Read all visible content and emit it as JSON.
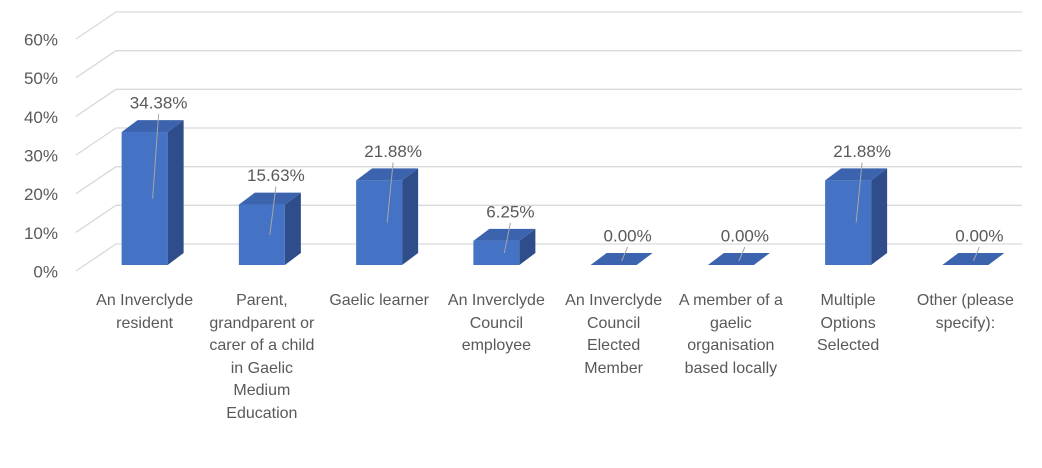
{
  "chart_data": {
    "type": "bar3d",
    "categories": [
      "An Inverclyde resident",
      "Parent, grandparent or carer of a child in Gaelic Medium Education",
      "Gaelic learner",
      "An Inverclyde Council employee",
      "An Inverclyde Council Elected Member",
      "A member of a gaelic organisation based locally",
      "Multiple Options Selected",
      "Other (please specify):"
    ],
    "values": [
      34.38,
      15.63,
      21.88,
      6.25,
      0,
      0,
      21.88,
      0
    ],
    "value_labels": [
      "34.38%",
      "15.63%",
      "21.88%",
      "6.25%",
      "0.00%",
      "0.00%",
      "21.88%",
      "0.00%"
    ],
    "color": "#4472c4",
    "ylim": [
      0,
      60
    ],
    "yticks": [
      {
        "value": 0,
        "label": "0%"
      },
      {
        "value": 10,
        "label": "10%"
      },
      {
        "value": 20,
        "label": "20%"
      },
      {
        "value": 30,
        "label": "30%"
      },
      {
        "value": 40,
        "label": "40%"
      },
      {
        "value": 50,
        "label": "50%"
      },
      {
        "value": 60,
        "label": "60%"
      }
    ],
    "grid": true
  }
}
